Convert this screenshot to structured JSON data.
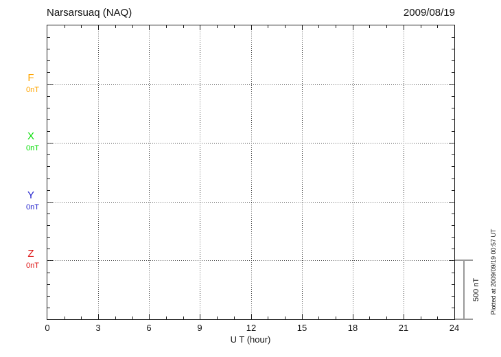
{
  "header": {
    "station": "Narsarsuaq (NAQ)",
    "date": "2009/08/19"
  },
  "chart_data": {
    "type": "line",
    "title": "Narsarsuaq (NAQ)",
    "subtitle_date": "2009/08/19",
    "xlabel": "U T (hour)",
    "xlim": [
      0,
      24
    ],
    "x_major_ticks": [
      0,
      3,
      6,
      9,
      12,
      15,
      18,
      21,
      24
    ],
    "x_minor_step_hours": 1,
    "y_minor_step_nT": 100,
    "y_span_nT": 2500,
    "component_spacing_nT": 500,
    "grid": "dotted",
    "legend_position": "left",
    "components": [
      {
        "name": "F",
        "baseline_label": "0nT",
        "baseline_nT": 0,
        "color": "#FFA500",
        "values": []
      },
      {
        "name": "X",
        "baseline_label": "0nT",
        "baseline_nT": 0,
        "color": "#00DD00",
        "values": []
      },
      {
        "name": "Y",
        "baseline_label": "0nT",
        "baseline_nT": 0,
        "color": "#2222CC",
        "values": []
      },
      {
        "name": "Z",
        "baseline_label": "0nT",
        "baseline_nT": 0,
        "color": "#DD1111",
        "values": []
      }
    ],
    "scale_bar": {
      "label": "500 nT",
      "value_nT": 500
    }
  },
  "footer": {
    "plotted_at": "Plotted at 2009/09/19 00:57 UT"
  }
}
